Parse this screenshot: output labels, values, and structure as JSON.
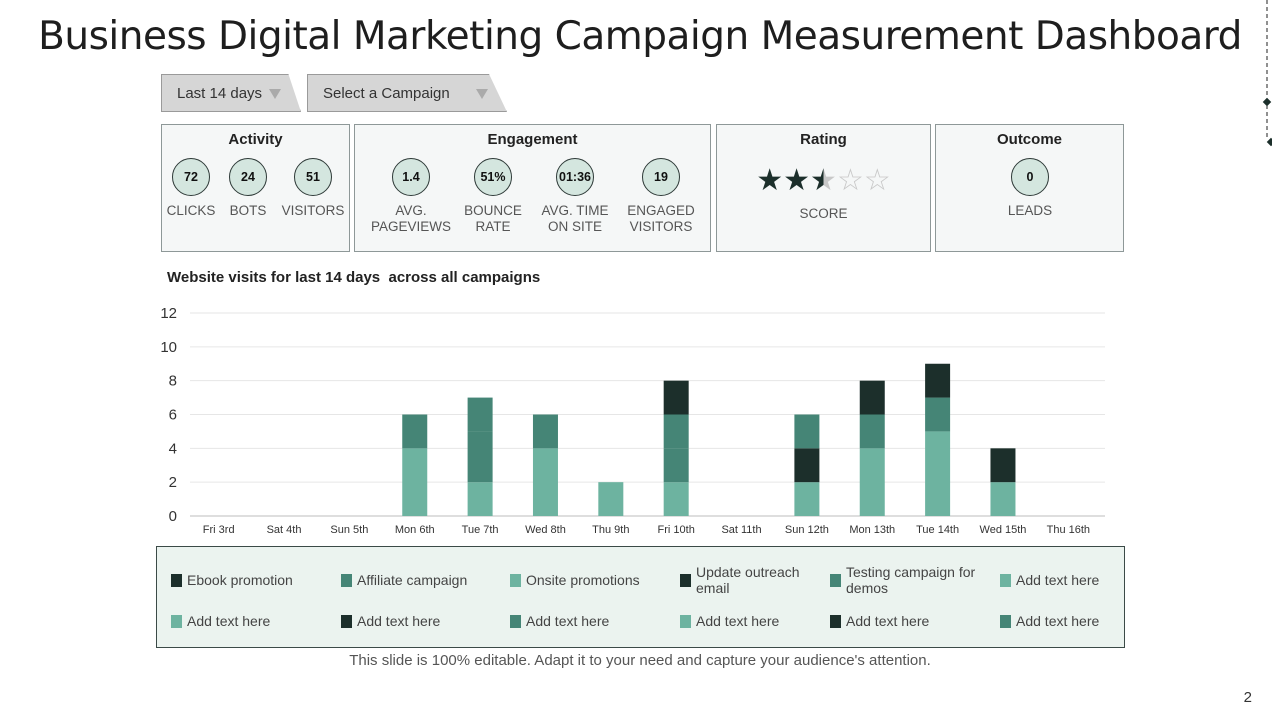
{
  "title": "Business Digital Marketing Campaign Measurement Dashboard",
  "filters": {
    "period": "Last 14 days",
    "campaign": "Select a Campaign"
  },
  "panels": {
    "activity": {
      "title": "Activity",
      "metrics": [
        {
          "value": "72",
          "label": "CLICKS"
        },
        {
          "value": "24",
          "label": "BOTS"
        },
        {
          "value": "51",
          "label": "VISITORS"
        }
      ]
    },
    "engagement": {
      "title": "Engagement",
      "metrics": [
        {
          "value": "1.4",
          "label": "AVG.\nPAGEVIEWS"
        },
        {
          "value": "51%",
          "label": "BOUNCE\nRATE"
        },
        {
          "value": "01:36",
          "label": "AVG. TIME\nON SITE"
        },
        {
          "value": "19",
          "label": "ENGAGED\nVISITORS"
        }
      ]
    },
    "rating": {
      "title": "Rating",
      "stars_filled": 2.5,
      "stars_total": 5,
      "label": "SCORE"
    },
    "outcome": {
      "title": "Outcome",
      "metrics": [
        {
          "value": "0",
          "label": "LEADS"
        }
      ]
    }
  },
  "colors": {
    "dark": "#1c2f2b",
    "mid": "#458576",
    "light": "#6db3a0"
  },
  "chart_data": {
    "type": "bar",
    "stacked": true,
    "title": "Website visits for last 14 days  across all campaigns",
    "categories": [
      "Fri 3rd",
      "Sat 4th",
      "Sun 5th",
      "Mon 6th",
      "Tue 7th",
      "Wed 8th",
      "Thu 9th",
      "Fri 10th",
      "Sat 11th",
      "Sun 12th",
      "Mon 13th",
      "Tue 14th",
      "Wed 15th",
      "Thu 16th"
    ],
    "series": [
      {
        "color": "#6db3a0",
        "values": [
          0,
          0,
          0,
          4,
          2,
          4,
          2,
          2,
          0,
          2,
          4,
          5,
          2,
          0
        ]
      },
      {
        "color": "#458576",
        "values": [
          0,
          0,
          0,
          0,
          3,
          0,
          0,
          2,
          0,
          0,
          0,
          0,
          0,
          0
        ]
      },
      {
        "color": "#1c2f2b",
        "values": [
          0,
          0,
          0,
          0,
          0,
          0,
          0,
          0,
          0,
          2,
          0,
          0,
          2,
          0
        ]
      },
      {
        "color": "#458576",
        "values": [
          0,
          0,
          0,
          2,
          2,
          2,
          0,
          2,
          0,
          2,
          2,
          2,
          0,
          0
        ]
      },
      {
        "color": "#1c2f2b",
        "values": [
          0,
          0,
          0,
          0,
          0,
          0,
          0,
          2,
          0,
          0,
          2,
          2,
          0,
          0
        ]
      }
    ],
    "yticks": [
      0,
      2,
      4,
      6,
      8,
      10,
      12
    ],
    "ylim": [
      0,
      12
    ],
    "grid": true
  },
  "legend": [
    {
      "label": "Ebook promotion",
      "color": "#1c2f2b"
    },
    {
      "label": "Affiliate campaign",
      "color": "#458576"
    },
    {
      "label": "Onsite promotions",
      "color": "#6db3a0"
    },
    {
      "label": "Update outreach email",
      "color": "#1c2f2b"
    },
    {
      "label": "Testing campaign for demos",
      "color": "#458576"
    },
    {
      "label": "Add text here",
      "color": "#6db3a0"
    },
    {
      "label": "Add text here",
      "color": "#6db3a0"
    },
    {
      "label": "Add text here",
      "color": "#1c2f2b"
    },
    {
      "label": "Add text here",
      "color": "#458576"
    },
    {
      "label": "Add text here",
      "color": "#6db3a0"
    },
    {
      "label": "Add text here",
      "color": "#1c2f2b"
    },
    {
      "label": "Add text here",
      "color": "#458576"
    }
  ],
  "footer": "This slide is 100% editable. Adapt it to your need and capture your audience's attention.",
  "page_number": "2"
}
